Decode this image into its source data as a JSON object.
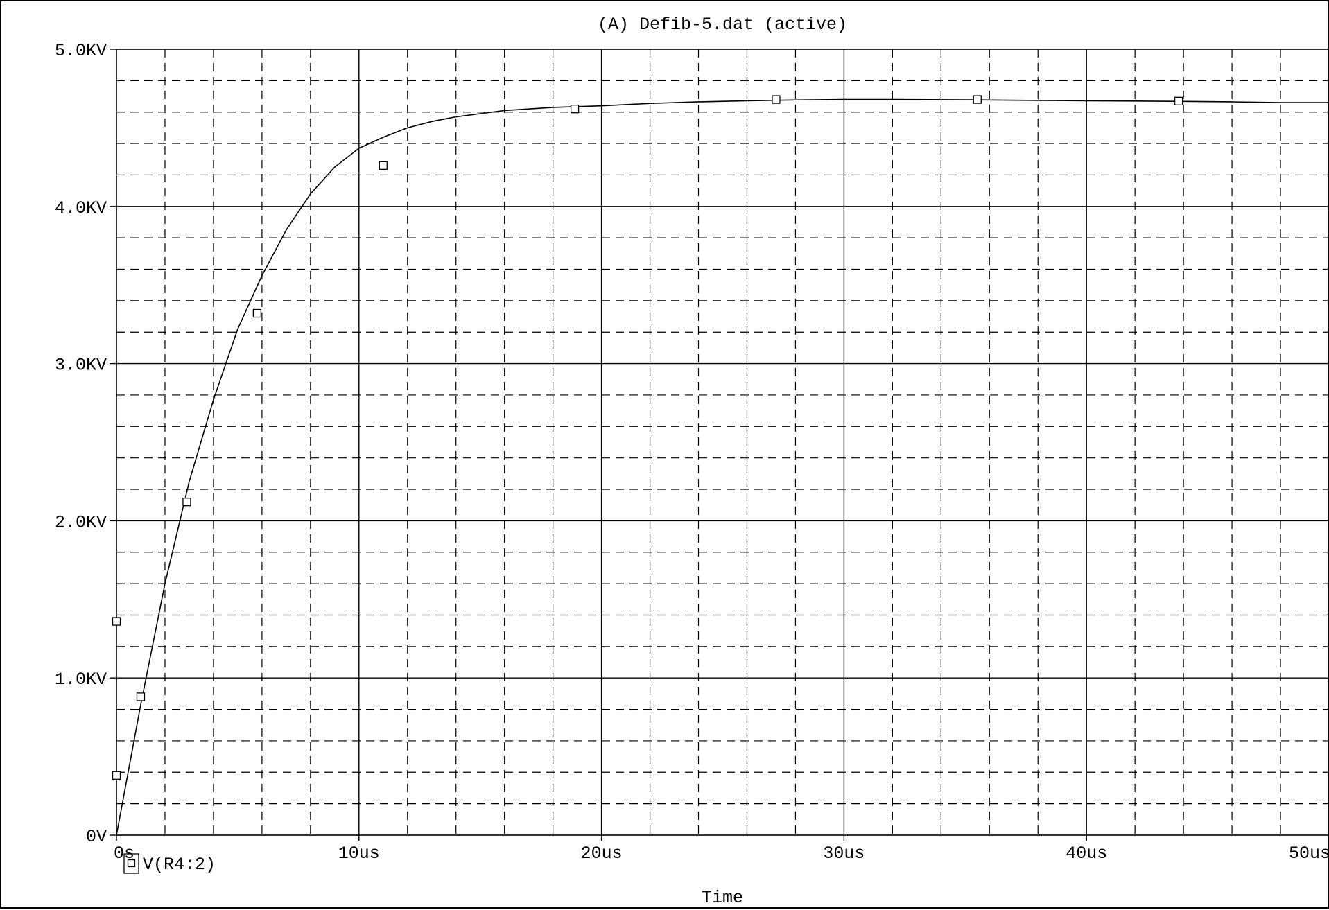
{
  "window": {
    "title": "(A) Defib-5.dat (active)"
  },
  "chart_data": {
    "type": "line",
    "title": "(A) Defib-5.dat (active)",
    "xlabel": "Time",
    "ylabel": "",
    "x_unit": "us",
    "y_unit": "KV",
    "xlim": [
      0,
      50
    ],
    "ylim": [
      0,
      5
    ],
    "x_ticks": [
      0,
      10,
      20,
      30,
      40,
      50
    ],
    "x_tick_labels": [
      "0s",
      "10us",
      "20us",
      "30us",
      "40us",
      "50us"
    ],
    "y_ticks": [
      0,
      1,
      2,
      3,
      4,
      5
    ],
    "y_tick_labels": [
      "0V",
      "1.0KV",
      "2.0KV",
      "3.0KV",
      "4.0KV",
      "5.0KV"
    ],
    "grid": true,
    "legend": "bottom-left",
    "series": [
      {
        "name": "V(R4:2)",
        "marker": "square",
        "color": "#000000",
        "x": [
          0,
          1,
          2,
          3,
          4,
          5,
          6,
          7,
          8,
          9,
          10,
          11,
          12,
          13,
          14,
          15,
          16,
          17,
          18,
          19,
          20,
          22,
          24,
          26,
          28,
          30,
          32,
          35,
          38,
          40,
          42,
          44,
          46,
          48,
          50
        ],
        "values": [
          0.0,
          0.83,
          1.6,
          2.25,
          2.77,
          3.22,
          3.56,
          3.85,
          4.08,
          4.25,
          4.37,
          4.44,
          4.5,
          4.54,
          4.57,
          4.59,
          4.61,
          4.62,
          4.63,
          4.635,
          4.64,
          4.655,
          4.665,
          4.672,
          4.677,
          4.68,
          4.68,
          4.678,
          4.674,
          4.672,
          4.67,
          4.668,
          4.665,
          4.66,
          4.66
        ],
        "markers": [
          [
            0,
            0.38
          ],
          [
            0,
            1.36
          ],
          [
            1,
            0.88
          ],
          [
            2.9,
            2.12
          ],
          [
            5.8,
            3.32
          ],
          [
            11.0,
            4.26
          ],
          [
            18.9,
            4.62
          ],
          [
            27.2,
            4.68
          ],
          [
            35.5,
            4.68
          ],
          [
            43.8,
            4.67
          ]
        ]
      }
    ]
  }
}
